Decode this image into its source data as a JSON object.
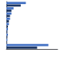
{
  "chart_data": {
    "type": "bar",
    "orientation": "horizontal",
    "categories": [
      null,
      null,
      null,
      null,
      null,
      null,
      null,
      null,
      null
    ],
    "series": [
      {
        "color": "#4472c4",
        "values": [
          38,
          14,
          10,
          7,
          5,
          3,
          3,
          2,
          82
        ]
      },
      {
        "color": "#1f3864",
        "values": [
          28,
          10,
          7,
          5,
          3,
          2,
          2,
          1,
          60
        ]
      }
    ],
    "xlim": [
      0,
      100
    ],
    "grid": false,
    "tick_labels": false
  }
}
